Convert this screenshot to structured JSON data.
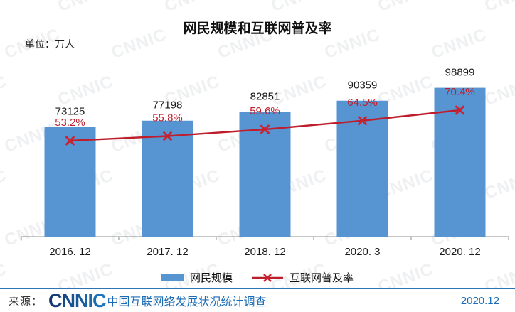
{
  "watermark": {
    "text": "CNNIC"
  },
  "chart_data": {
    "type": "bar",
    "title": "网民规模和互联网普及率",
    "unit_label": "单位：万人",
    "categories": [
      "2016. 12",
      "2017. 12",
      "2018. 12",
      "2020. 3",
      "2020. 12"
    ],
    "series": [
      {
        "name": "网民规模",
        "type": "bar",
        "unit": "万人",
        "values": [
          73125,
          77198,
          82851,
          90359,
          98899
        ],
        "labels": [
          "73125",
          "77198",
          "82851",
          "90359",
          "98899"
        ],
        "color": "#5794D2"
      },
      {
        "name": "互联网普及率",
        "type": "line",
        "unit": "%",
        "values": [
          53.2,
          55.8,
          59.6,
          64.5,
          70.4
        ],
        "labels": [
          "53.2%",
          "55.8%",
          "59.6%",
          "64.5%",
          "70.4%"
        ],
        "color": "#BE1E2C",
        "marker_color": "#CB2230",
        "marker": "x"
      }
    ],
    "grid": false,
    "axis_color": "#8C8C8C",
    "value_label_color": "#1A1A1A",
    "legend_position": "bottom"
  },
  "legend": {
    "items": [
      {
        "label": "网民规模",
        "swatch": "bar",
        "color": "#5794D2"
      },
      {
        "label": "互联网普及率",
        "swatch": "line-x",
        "color": "#BE1E2C"
      }
    ]
  },
  "footer": {
    "source_label": "来源：",
    "logo_text": "CNNIC",
    "survey_name": "中国互联网络发展状况统计调查",
    "date": "2020.12",
    "logo_color_dark": "#14356E",
    "logo_color_light": "#1E7AC1",
    "text_color": "#1B6CB5",
    "divider_color": "#2E74B5"
  }
}
